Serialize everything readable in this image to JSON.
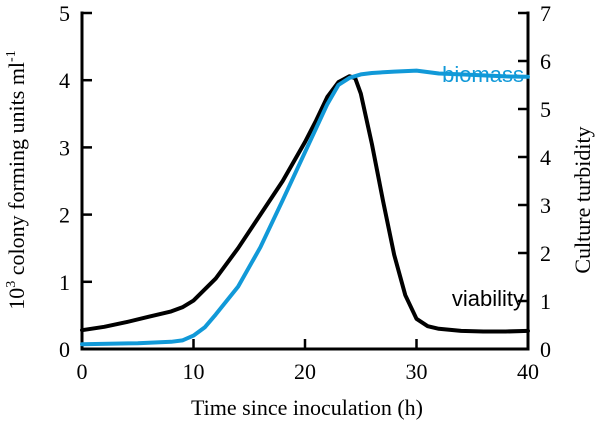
{
  "chart_data": {
    "type": "line",
    "x_axis": {
      "label": "Time since inoculation (h)",
      "range": [
        0,
        40
      ],
      "ticks": [
        "0",
        "10",
        "20",
        "30",
        "40"
      ],
      "grid": false
    },
    "y_left": {
      "label_base": "10",
      "label_sup": "3",
      "label_middle": " colony forming units ml",
      "label_sup2": "-1",
      "range": [
        0,
        5
      ],
      "ticks": [
        "0",
        "1",
        "2",
        "3",
        "4",
        "5"
      ]
    },
    "y_right": {
      "label": "Culture turbidity",
      "range": [
        0,
        7
      ],
      "ticks": [
        "0",
        "1",
        "2",
        "3",
        "4",
        "5",
        "6",
        "7"
      ]
    },
    "series": [
      {
        "name": "viability",
        "axis": "left",
        "color": "#000000",
        "x": [
          0,
          2,
          4,
          6,
          8,
          9,
          10,
          12,
          14,
          16,
          18,
          20,
          21,
          22,
          23,
          24,
          24.5,
          25,
          26,
          27,
          28,
          29,
          30,
          31,
          32,
          34,
          36,
          38,
          40
        ],
        "y": [
          0.28,
          0.33,
          0.4,
          0.48,
          0.56,
          0.62,
          0.72,
          1.05,
          1.5,
          2.0,
          2.5,
          3.08,
          3.4,
          3.75,
          3.97,
          4.06,
          4.03,
          3.8,
          3.05,
          2.2,
          1.4,
          0.8,
          0.45,
          0.34,
          0.3,
          0.27,
          0.26,
          0.26,
          0.27
        ]
      },
      {
        "name": "biomass",
        "axis": "right",
        "color": "#1199d8",
        "x": [
          0,
          5,
          8,
          9,
          10,
          11,
          12,
          14,
          16,
          18,
          20,
          22,
          23,
          24,
          25,
          26,
          28,
          30,
          32,
          34,
          36,
          38,
          40
        ],
        "y": [
          0.1,
          0.12,
          0.15,
          0.18,
          0.28,
          0.45,
          0.72,
          1.3,
          2.12,
          3.1,
          4.1,
          5.1,
          5.5,
          5.65,
          5.72,
          5.75,
          5.78,
          5.8,
          5.74,
          5.72,
          5.7,
          5.68,
          5.67
        ]
      }
    ]
  }
}
